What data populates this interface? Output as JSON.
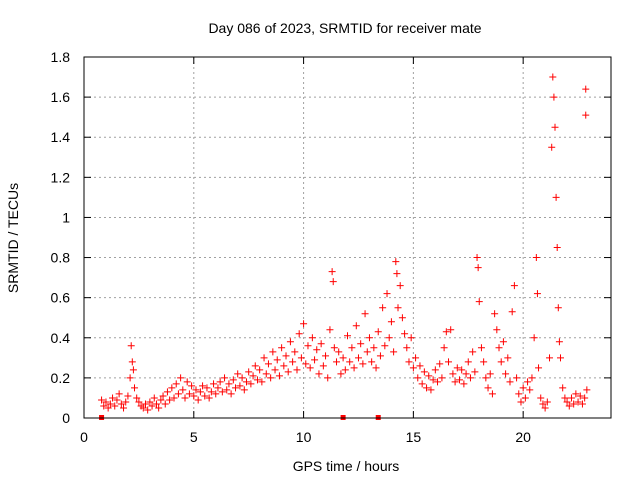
{
  "chart_data": {
    "type": "scatter",
    "title": "Day 086 of 2023, SRMTID for receiver mate",
    "xlabel": "GPS time / hours",
    "ylabel": "SRMTID / TECUs",
    "xlim": [
      0,
      24
    ],
    "ylim": [
      0,
      1.8
    ],
    "xticks": [
      0,
      5,
      10,
      15,
      20
    ],
    "xtick_labels": [
      "0",
      "5",
      "10",
      "15",
      "20"
    ],
    "yticks": [
      0,
      0.2,
      0.4,
      0.6,
      0.8,
      1.0,
      1.2,
      1.4,
      1.6,
      1.8
    ],
    "ytick_labels": [
      "0",
      "0.2",
      "0.4",
      "0.6",
      "0.8",
      "1",
      "1.2",
      "1.4",
      "1.6",
      "1.8"
    ],
    "grid": true,
    "marker": "plus",
    "color": "#ff0000",
    "series": [
      {
        "name": "SRMTID",
        "points": [
          [
            0.8,
            0.09
          ],
          [
            0.9,
            0.06
          ],
          [
            1.0,
            0.08
          ],
          [
            1.1,
            0.05
          ],
          [
            1.2,
            0.07
          ],
          [
            1.3,
            0.1
          ],
          [
            1.4,
            0.06
          ],
          [
            1.5,
            0.09
          ],
          [
            1.6,
            0.12
          ],
          [
            1.7,
            0.07
          ],
          [
            1.8,
            0.05
          ],
          [
            1.9,
            0.08
          ],
          [
            2.0,
            0.11
          ],
          [
            2.1,
            0.2
          ],
          [
            2.15,
            0.36
          ],
          [
            2.2,
            0.28
          ],
          [
            2.25,
            0.24
          ],
          [
            2.3,
            0.15
          ],
          [
            2.4,
            0.1
          ],
          [
            2.5,
            0.08
          ],
          [
            2.6,
            0.06
          ],
          [
            2.7,
            0.05
          ],
          [
            2.8,
            0.07
          ],
          [
            2.9,
            0.04
          ],
          [
            3.0,
            0.08
          ],
          [
            3.1,
            0.06
          ],
          [
            3.2,
            0.1
          ],
          [
            3.3,
            0.07
          ],
          [
            3.4,
            0.05
          ],
          [
            3.5,
            0.09
          ],
          [
            3.6,
            0.11
          ],
          [
            3.7,
            0.07
          ],
          [
            3.8,
            0.13
          ],
          [
            3.9,
            0.09
          ],
          [
            4.0,
            0.15
          ],
          [
            4.1,
            0.1
          ],
          [
            4.2,
            0.17
          ],
          [
            4.3,
            0.12
          ],
          [
            4.4,
            0.2
          ],
          [
            4.5,
            0.14
          ],
          [
            4.6,
            0.1
          ],
          [
            4.7,
            0.18
          ],
          [
            4.8,
            0.12
          ],
          [
            4.9,
            0.16
          ],
          [
            5.0,
            0.11
          ],
          [
            5.1,
            0.14
          ],
          [
            5.2,
            0.09
          ],
          [
            5.3,
            0.13
          ],
          [
            5.4,
            0.16
          ],
          [
            5.5,
            0.11
          ],
          [
            5.6,
            0.15
          ],
          [
            5.7,
            0.1
          ],
          [
            5.8,
            0.13
          ],
          [
            5.9,
            0.17
          ],
          [
            6.0,
            0.12
          ],
          [
            6.1,
            0.15
          ],
          [
            6.2,
            0.18
          ],
          [
            6.3,
            0.13
          ],
          [
            6.4,
            0.2
          ],
          [
            6.5,
            0.14
          ],
          [
            6.6,
            0.17
          ],
          [
            6.7,
            0.12
          ],
          [
            6.8,
            0.19
          ],
          [
            6.9,
            0.15
          ],
          [
            7.0,
            0.22
          ],
          [
            7.1,
            0.16
          ],
          [
            7.2,
            0.2
          ],
          [
            7.3,
            0.14
          ],
          [
            7.4,
            0.18
          ],
          [
            7.5,
            0.23
          ],
          [
            7.6,
            0.17
          ],
          [
            7.7,
            0.21
          ],
          [
            7.8,
            0.26
          ],
          [
            7.9,
            0.19
          ],
          [
            8.0,
            0.24
          ],
          [
            8.1,
            0.18
          ],
          [
            8.2,
            0.3
          ],
          [
            8.3,
            0.22
          ],
          [
            8.4,
            0.27
          ],
          [
            8.5,
            0.2
          ],
          [
            8.6,
            0.33
          ],
          [
            8.7,
            0.24
          ],
          [
            8.8,
            0.29
          ],
          [
            8.9,
            0.21
          ],
          [
            9.0,
            0.35
          ],
          [
            9.1,
            0.26
          ],
          [
            9.2,
            0.31
          ],
          [
            9.3,
            0.23
          ],
          [
            9.4,
            0.38
          ],
          [
            9.5,
            0.28
          ],
          [
            9.6,
            0.33
          ],
          [
            9.7,
            0.24
          ],
          [
            9.8,
            0.42
          ],
          [
            9.9,
            0.3
          ],
          [
            10.0,
            0.47
          ],
          [
            10.1,
            0.27
          ],
          [
            10.2,
            0.36
          ],
          [
            10.3,
            0.25
          ],
          [
            10.4,
            0.4
          ],
          [
            10.5,
            0.29
          ],
          [
            10.6,
            0.34
          ],
          [
            10.7,
            0.22
          ],
          [
            10.8,
            0.37
          ],
          [
            10.9,
            0.26
          ],
          [
            11.0,
            0.31
          ],
          [
            11.1,
            0.2
          ],
          [
            11.2,
            0.44
          ],
          [
            11.3,
            0.73
          ],
          [
            11.35,
            0.68
          ],
          [
            11.4,
            0.35
          ],
          [
            11.5,
            0.28
          ],
          [
            11.6,
            0.33
          ],
          [
            11.7,
            0.22
          ],
          [
            11.8,
            0.3
          ],
          [
            11.9,
            0.24
          ],
          [
            12.0,
            0.41
          ],
          [
            12.1,
            0.28
          ],
          [
            12.2,
            0.35
          ],
          [
            12.3,
            0.25
          ],
          [
            12.4,
            0.46
          ],
          [
            12.5,
            0.3
          ],
          [
            12.6,
            0.37
          ],
          [
            12.7,
            0.27
          ],
          [
            12.8,
            0.52
          ],
          [
            12.9,
            0.33
          ],
          [
            13.0,
            0.4
          ],
          [
            13.1,
            0.28
          ],
          [
            13.2,
            0.35
          ],
          [
            13.3,
            0.25
          ],
          [
            13.4,
            0.43
          ],
          [
            13.5,
            0.31
          ],
          [
            13.6,
            0.55
          ],
          [
            13.7,
            0.36
          ],
          [
            13.8,
            0.62
          ],
          [
            13.9,
            0.4
          ],
          [
            14.0,
            0.48
          ],
          [
            14.1,
            0.33
          ],
          [
            14.2,
            0.78
          ],
          [
            14.25,
            0.72
          ],
          [
            14.3,
            0.55
          ],
          [
            14.4,
            0.66
          ],
          [
            14.5,
            0.5
          ],
          [
            14.6,
            0.42
          ],
          [
            14.7,
            0.35
          ],
          [
            14.8,
            0.28
          ],
          [
            14.9,
            0.4
          ],
          [
            15.0,
            0.25
          ],
          [
            15.1,
            0.3
          ],
          [
            15.2,
            0.2
          ],
          [
            15.3,
            0.26
          ],
          [
            15.4,
            0.17
          ],
          [
            15.5,
            0.23
          ],
          [
            15.6,
            0.15
          ],
          [
            15.7,
            0.21
          ],
          [
            15.8,
            0.14
          ],
          [
            15.9,
            0.19
          ],
          [
            16.0,
            0.24
          ],
          [
            16.1,
            0.18
          ],
          [
            16.2,
            0.27
          ],
          [
            16.3,
            0.2
          ],
          [
            16.4,
            0.35
          ],
          [
            16.5,
            0.43
          ],
          [
            16.6,
            0.28
          ],
          [
            16.7,
            0.44
          ],
          [
            16.8,
            0.22
          ],
          [
            16.9,
            0.18
          ],
          [
            17.0,
            0.25
          ],
          [
            17.1,
            0.19
          ],
          [
            17.2,
            0.24
          ],
          [
            17.3,
            0.17
          ],
          [
            17.4,
            0.22
          ],
          [
            17.5,
            0.28
          ],
          [
            17.6,
            0.2
          ],
          [
            17.7,
            0.33
          ],
          [
            17.8,
            0.23
          ],
          [
            17.9,
            0.8
          ],
          [
            17.95,
            0.75
          ],
          [
            18.0,
            0.58
          ],
          [
            18.1,
            0.35
          ],
          [
            18.2,
            0.28
          ],
          [
            18.3,
            0.2
          ],
          [
            18.4,
            0.15
          ],
          [
            18.5,
            0.22
          ],
          [
            18.6,
            0.12
          ],
          [
            18.7,
            0.52
          ],
          [
            18.8,
            0.44
          ],
          [
            18.9,
            0.35
          ],
          [
            19.0,
            0.28
          ],
          [
            19.1,
            0.38
          ],
          [
            19.2,
            0.22
          ],
          [
            19.3,
            0.3
          ],
          [
            19.4,
            0.18
          ],
          [
            19.5,
            0.53
          ],
          [
            19.6,
            0.66
          ],
          [
            19.7,
            0.2
          ],
          [
            19.8,
            0.12
          ],
          [
            19.9,
            0.08
          ],
          [
            20.0,
            0.15
          ],
          [
            20.1,
            0.1
          ],
          [
            20.2,
            0.18
          ],
          [
            20.3,
            0.14
          ],
          [
            20.4,
            0.2
          ],
          [
            20.5,
            0.4
          ],
          [
            20.6,
            0.8
          ],
          [
            20.65,
            0.62
          ],
          [
            20.7,
            0.25
          ],
          [
            20.8,
            0.1
          ],
          [
            20.9,
            0.07
          ],
          [
            21.0,
            0.05
          ],
          [
            21.1,
            0.08
          ],
          [
            21.2,
            0.3
          ],
          [
            21.3,
            1.35
          ],
          [
            21.35,
            1.7
          ],
          [
            21.4,
            1.6
          ],
          [
            21.45,
            1.45
          ],
          [
            21.5,
            1.1
          ],
          [
            21.55,
            0.85
          ],
          [
            21.6,
            0.55
          ],
          [
            21.65,
            0.38
          ],
          [
            21.7,
            0.3
          ],
          [
            21.8,
            0.15
          ],
          [
            21.9,
            0.1
          ],
          [
            22.0,
            0.08
          ],
          [
            22.1,
            0.06
          ],
          [
            22.2,
            0.1
          ],
          [
            22.3,
            0.07
          ],
          [
            22.4,
            0.12
          ],
          [
            22.5,
            0.08
          ],
          [
            22.6,
            0.11
          ],
          [
            22.7,
            0.07
          ],
          [
            22.8,
            0.1
          ],
          [
            22.85,
            1.64
          ],
          [
            22.85,
            1.51
          ],
          [
            22.9,
            0.14
          ]
        ]
      }
    ],
    "baseline_markers_x": [
      0.8,
      11.8,
      13.4
    ]
  }
}
